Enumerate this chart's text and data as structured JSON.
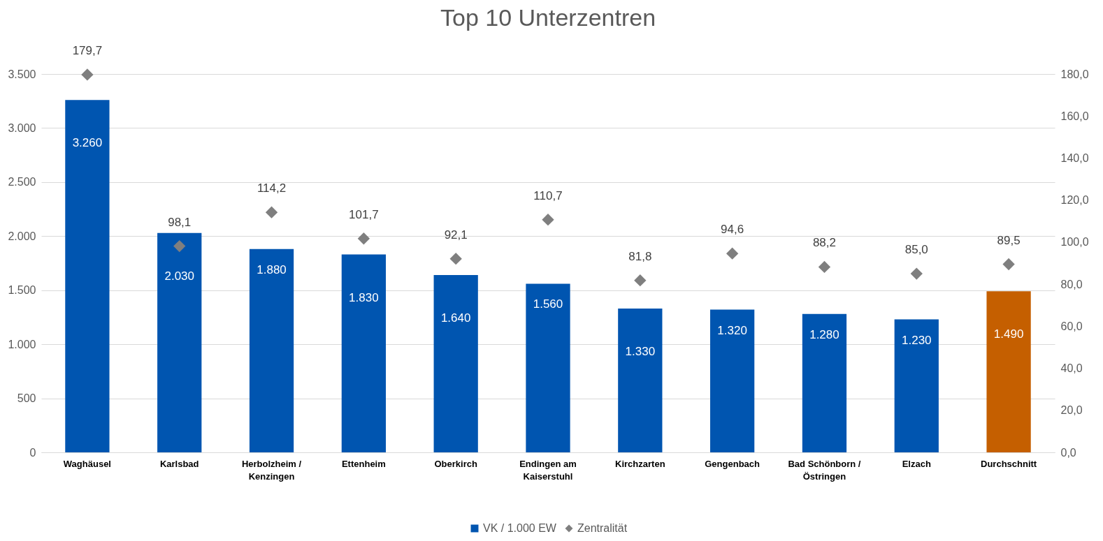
{
  "chart_data": {
    "type": "bar",
    "title": "Top 10  Unterzentren",
    "categories": [
      "Waghäusel",
      "Karlsbad",
      "Herbolzheim / Kenzingen",
      "Ettenheim",
      "Oberkirch",
      "Endingen am Kaiserstuhl",
      "Kirchzarten",
      "Gengenbach",
      "Bad Schönborn / Östringen",
      "Elzach",
      "Durchschnitt"
    ],
    "series": [
      {
        "name": "VK / 1.000 EW",
        "colors": [
          "#0055b0",
          "#0055b0",
          "#0055b0",
          "#0055b0",
          "#0055b0",
          "#0055b0",
          "#0055b0",
          "#0055b0",
          "#0055b0",
          "#0055b0",
          "#c55f00"
        ],
        "values": [
          3260,
          2030,
          1880,
          1830,
          1640,
          1560,
          1330,
          1320,
          1280,
          1230,
          1490
        ],
        "value_labels": [
          "3.260",
          "2.030",
          "1.880",
          "1.830",
          "1.640",
          "1.560",
          "1.330",
          "1.320",
          "1.280",
          "1.230",
          "1.490"
        ]
      },
      {
        "name": "Zentralität",
        "type": "scatter",
        "axis": "y2",
        "color": "#7f7f7f",
        "values": [
          179.7,
          98.1,
          114.2,
          101.7,
          92.1,
          110.7,
          81.8,
          94.6,
          88.2,
          85.0,
          89.5
        ],
        "value_labels": [
          "179,7",
          "98,1",
          "114,2",
          "101,7",
          "92,1",
          "110,7",
          "81,8",
          "94,6",
          "88,2",
          "85,0",
          "89,5"
        ]
      }
    ],
    "ylim": [
      0,
      3500
    ],
    "yticks": [
      {
        "value": 0,
        "label": "0"
      },
      {
        "value": 500,
        "label": "500"
      },
      {
        "value": 1000,
        "label": "1.000"
      },
      {
        "value": 1500,
        "label": "1.500"
      },
      {
        "value": 2000,
        "label": "2.000"
      },
      {
        "value": 2500,
        "label": "2.500"
      },
      {
        "value": 3000,
        "label": "3.000"
      },
      {
        "value": 3500,
        "label": "3.500"
      }
    ],
    "y2lim": [
      0,
      180
    ],
    "y2ticks": [
      {
        "value": 0,
        "label": "0,0"
      },
      {
        "value": 20,
        "label": "20,0"
      },
      {
        "value": 40,
        "label": "40,0"
      },
      {
        "value": 60,
        "label": "60,0"
      },
      {
        "value": 80,
        "label": "80,0"
      },
      {
        "value": 100,
        "label": "100,0"
      },
      {
        "value": 120,
        "label": "120,0"
      },
      {
        "value": 140,
        "label": "140,0"
      },
      {
        "value": 160,
        "label": "160,0"
      },
      {
        "value": 180,
        "label": "180,0"
      }
    ],
    "grid": "y",
    "legend": "bottom",
    "marker": "diamond"
  }
}
